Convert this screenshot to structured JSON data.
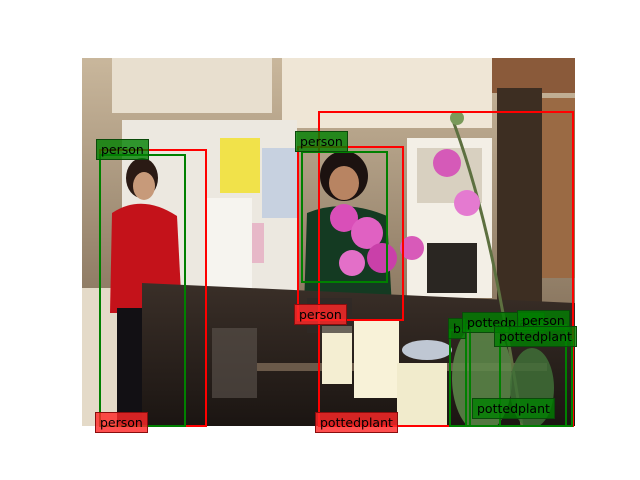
{
  "scene": {
    "colors": {
      "ground_truth": "#008000",
      "prediction": "#ff0000"
    },
    "labels": [
      {
        "text": "person",
        "kind": "gt"
      },
      {
        "text": "person",
        "kind": "gt"
      },
      {
        "text": "person",
        "kind": "pred"
      },
      {
        "text": "person",
        "kind": "pred"
      },
      {
        "text": "pottedplant",
        "kind": "pred"
      },
      {
        "text": "b",
        "kind": "gt"
      },
      {
        "text": "pottedplant",
        "kind": "gt"
      },
      {
        "text": "person",
        "kind": "gt"
      },
      {
        "text": "pottedplant",
        "kind": "gt"
      },
      {
        "text": "pottedplant",
        "kind": "gt"
      }
    ]
  }
}
